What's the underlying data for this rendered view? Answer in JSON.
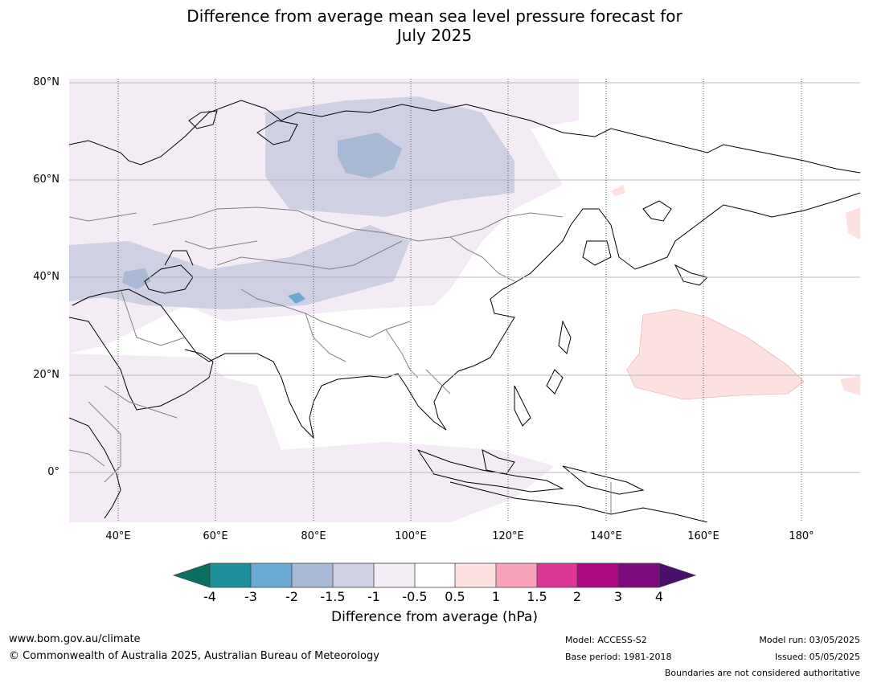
{
  "title_line1": "Difference from average mean sea level pressure forecast for",
  "title_line2": "July 2025",
  "map": {
    "lat_labels": [
      "80°N",
      "60°N",
      "40°N",
      "20°N",
      "0°"
    ],
    "lon_labels": [
      "40°E",
      "60°E",
      "80°E",
      "100°E",
      "120°E",
      "140°E",
      "160°E",
      "180°"
    ]
  },
  "colorbar": {
    "title": "Difference from average (hPa)",
    "ticks": [
      "-4",
      "-3",
      "-2",
      "-1.5",
      "-1",
      "-0.5",
      "0.5",
      "1",
      "1.5",
      "2",
      "3",
      "4"
    ],
    "colors": [
      "#0b6e62",
      "#1b9099",
      "#6aaad2",
      "#a8b9d5",
      "#cfd0e3",
      "#f3ecf5",
      "#ffffff",
      "#fde0e0",
      "#f7a1ba",
      "#dc3698",
      "#ad0a7f",
      "#7d0a7c",
      "#4a0e6b"
    ]
  },
  "footer": {
    "url": "www.bom.gov.au/climate",
    "copyright": "© Commonwealth of Australia 2025, Australian Bureau of Meteorology",
    "model": "Model: ACCESS-S2",
    "base_period": "Base period: 1981-2018",
    "model_run": "Model run: 03/05/2025",
    "issued": "Issued: 05/05/2025",
    "disclaimer": "Boundaries are not considered authoritative"
  }
}
